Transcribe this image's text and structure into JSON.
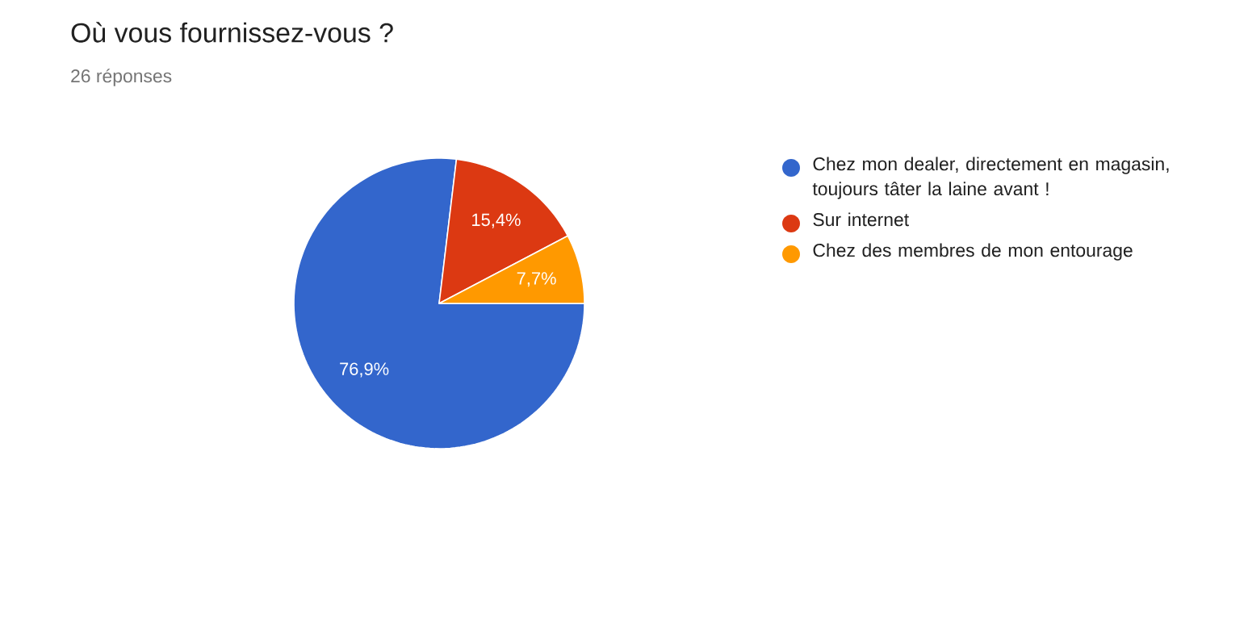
{
  "chart_data": {
    "type": "pie",
    "title": "Où vous fournissez-vous ?",
    "subtitle": "26 réponses",
    "categories": [
      "Chez mon dealer, directement en magasin, toujours tâter la laine avant !",
      "Sur internet",
      "Chez des membres de mon entourage"
    ],
    "values": [
      76.9,
      15.4,
      7.7
    ],
    "value_labels": [
      "76,9%",
      "15,4%",
      "7,7%"
    ],
    "colors": [
      "#3366cc",
      "#dc3912",
      "#ff9900"
    ],
    "legend": "right"
  }
}
